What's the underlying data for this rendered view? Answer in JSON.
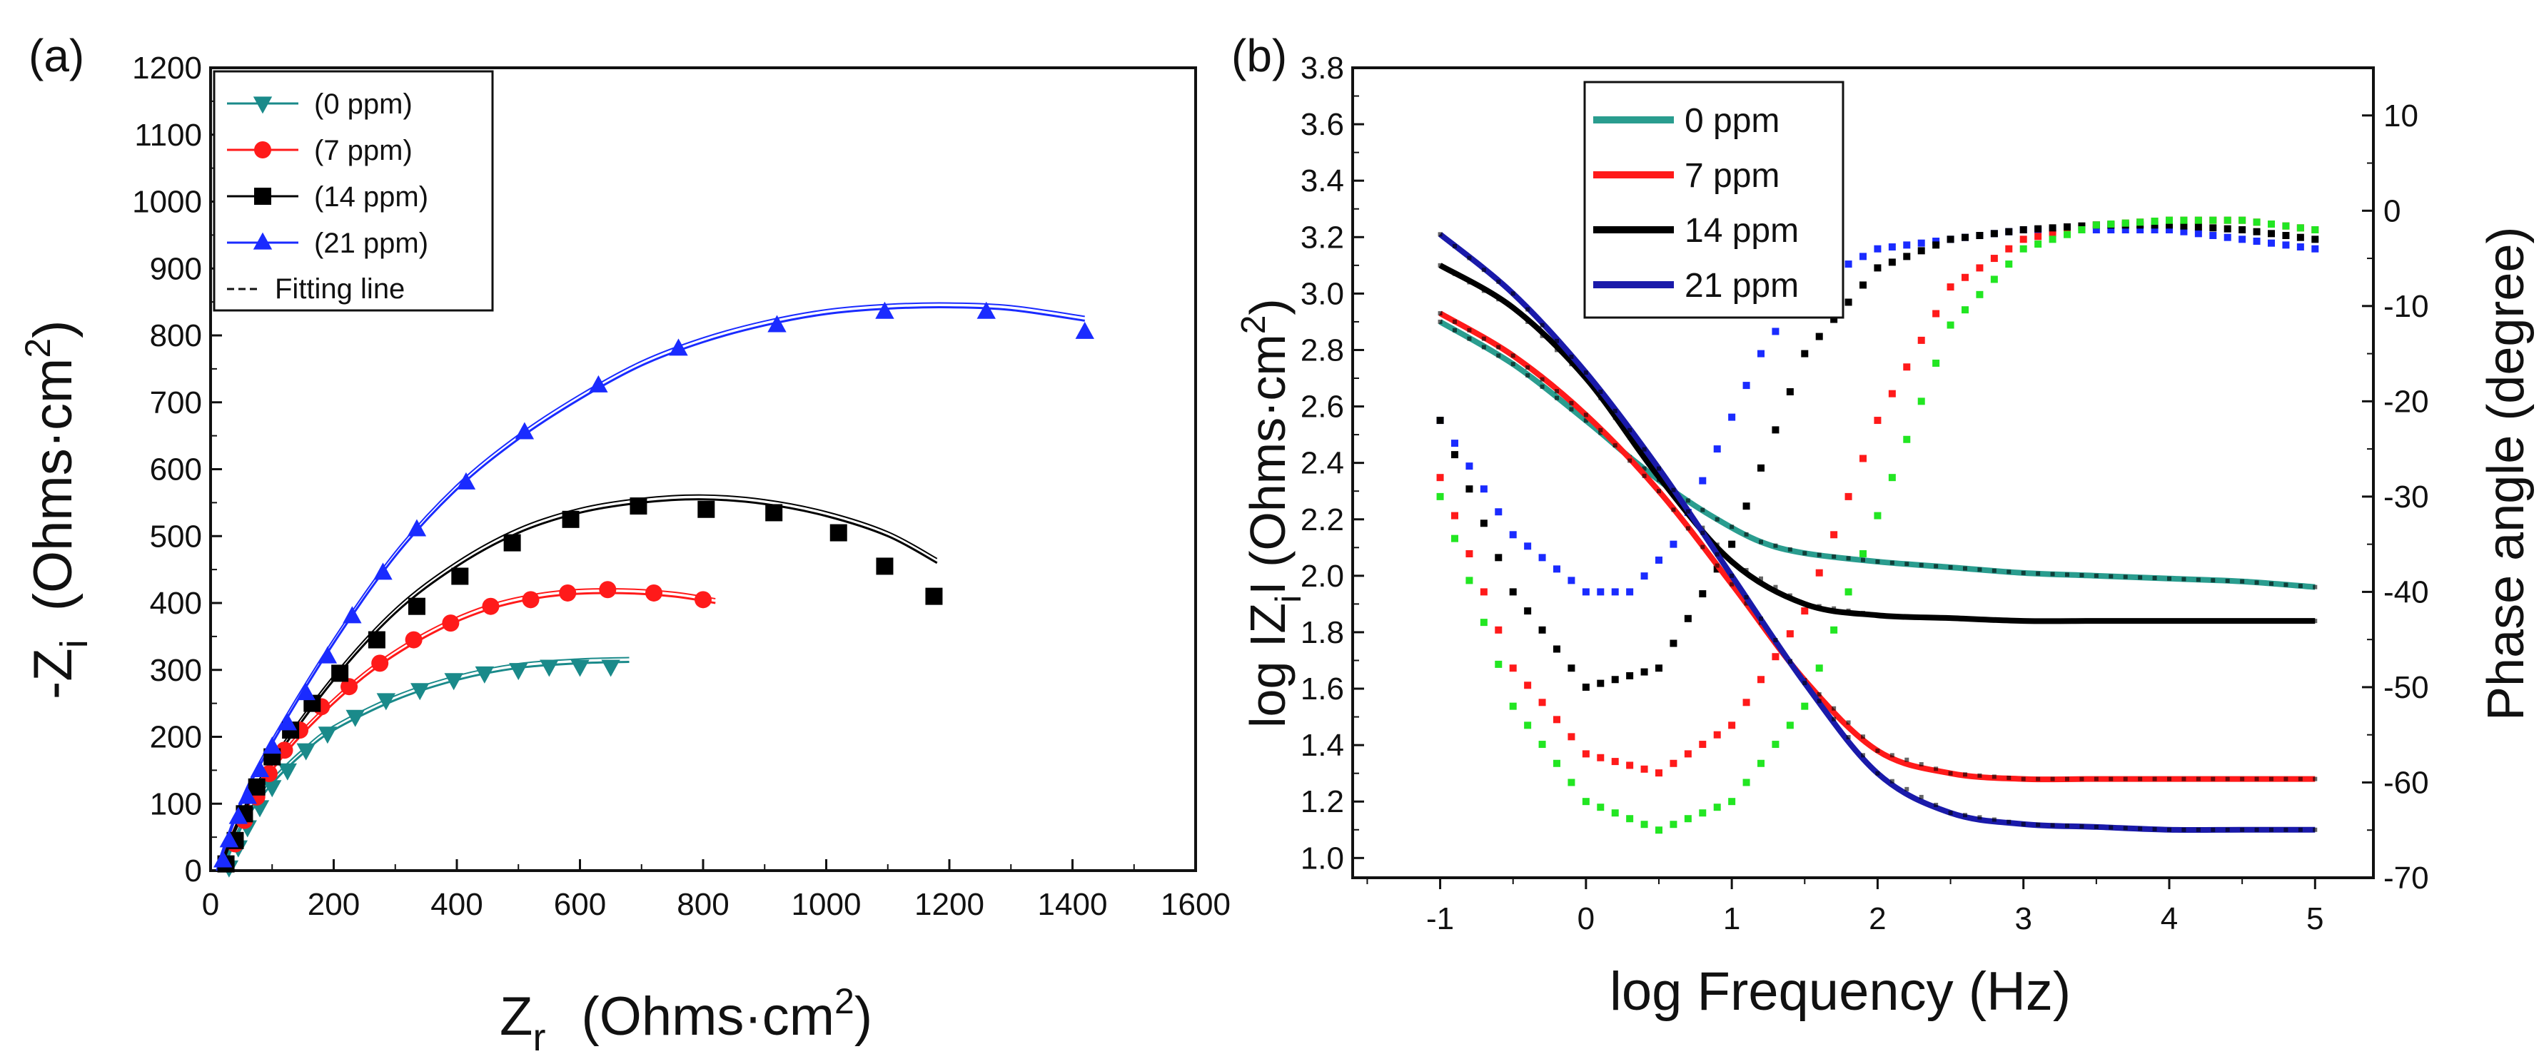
{
  "panels": [
    {
      "id": "a",
      "label": "(a)",
      "chart_data": {
        "type": "scatter",
        "title": "",
        "xlabel_main": "Z",
        "xlabel_sub": "r",
        "xlabel_unit": "(Ohms·cm",
        "xlabel_sup": "2",
        "xlabel_close": ")",
        "ylabel_main": "-Z",
        "ylabel_sub": "i",
        "ylabel_unit": "(Ohms·cm",
        "ylabel_sup": "2",
        "ylabel_close": ")",
        "xlim": [
          0,
          1600
        ],
        "ylim": [
          0,
          1200
        ],
        "xticks": [
          "0",
          "200",
          "400",
          "600",
          "800",
          "1000",
          "1200",
          "1400",
          "1600"
        ],
        "yticks": [
          "0",
          "100",
          "200",
          "300",
          "400",
          "500",
          "600",
          "700",
          "800",
          "900",
          "1000",
          "1100",
          "1200"
        ],
        "legend_position": "top-left",
        "fit_label": "Fitting line",
        "series": [
          {
            "name": "(0 ppm)",
            "color": "#1a8a8a",
            "marker": "triangle-down",
            "x": [
              30,
              45,
              60,
              80,
              100,
              125,
              155,
              190,
              235,
              285,
              340,
              395,
              445,
              500,
              550,
              600,
              650
            ],
            "y": [
              5,
              35,
              65,
              95,
              125,
              150,
              180,
              205,
              230,
              255,
              270,
              285,
              295,
              300,
              305,
              305,
              305
            ],
            "fit_x": [
              20,
              40,
              60,
              100,
              150,
              200,
              300,
              400,
              500,
              600,
              680
            ],
            "fit_y": [
              0,
              45,
              80,
              130,
              175,
              210,
              255,
              285,
              303,
              310,
              312
            ]
          },
          {
            "name": "(7 ppm)",
            "color": "#ff1a1a",
            "marker": "circle",
            "x": [
              25,
              40,
              55,
              75,
              95,
              120,
              145,
              180,
              225,
              275,
              330,
              390,
              455,
              520,
              580,
              645,
              720,
              800
            ],
            "y": [
              10,
              40,
              75,
              110,
              145,
              180,
              210,
              245,
              275,
              310,
              345,
              370,
              395,
              405,
              415,
              420,
              415,
              405
            ],
            "fit_x": [
              15,
              40,
              80,
              150,
              250,
              350,
              450,
              550,
              650,
              750,
              820
            ],
            "fit_y": [
              0,
              60,
              125,
              205,
              290,
              350,
              390,
              410,
              415,
              410,
              400
            ]
          },
          {
            "name": "(14 ppm)",
            "color": "#000000",
            "marker": "square",
            "x": [
              25,
              40,
              55,
              75,
              100,
              130,
              165,
              210,
              270,
              335,
              405,
              490,
              585,
              695,
              805,
              915,
              1020,
              1095,
              1175
            ],
            "y": [
              10,
              45,
              85,
              125,
              170,
              210,
              250,
              295,
              345,
              395,
              440,
              490,
              525,
              545,
              540,
              535,
              505,
              455,
              410
            ],
            "fit_x": [
              15,
              50,
              100,
              200,
              300,
              400,
              500,
              600,
              700,
              800,
              900,
              1000,
              1100,
              1180
            ],
            "fit_y": [
              0,
              80,
              160,
              285,
              385,
              455,
              505,
              535,
              550,
              555,
              548,
              530,
              500,
              460
            ]
          },
          {
            "name": "(21 ppm)",
            "color": "#1a2bff",
            "marker": "triangle-up",
            "x": [
              20,
              30,
              45,
              60,
              80,
              100,
              125,
              155,
              190,
              230,
              280,
              335,
              415,
              510,
              630,
              760,
              920,
              1095,
              1260,
              1420
            ],
            "y": [
              15,
              45,
              80,
              110,
              150,
              185,
              220,
              265,
              320,
              380,
              445,
              510,
              580,
              655,
              725,
              780,
              815,
              835,
              835,
              805
            ],
            "fit_x": [
              10,
              50,
              100,
              200,
              300,
              400,
              500,
              600,
              700,
              800,
              900,
              1000,
              1100,
              1200,
              1300,
              1420
            ],
            "fit_y": [
              0,
              100,
              190,
              340,
              470,
              570,
              645,
              705,
              755,
              790,
              815,
              832,
              840,
              842,
              838,
              822
            ]
          }
        ]
      }
    },
    {
      "id": "b",
      "label": "(b)",
      "chart_data": {
        "type": "line",
        "title": "",
        "xlabel": "log Frequency (Hz)",
        "ylabel_main": "log IZ",
        "ylabel_sub": "i",
        "ylabel_unit": "I (Ohms·cm",
        "ylabel_sup": "2",
        "ylabel_close": ")",
        "y2label": "Phase angle (degree)",
        "xlim": [
          -1.6,
          5.4
        ],
        "ylim": [
          0.93,
          3.8
        ],
        "y2lim": [
          -70,
          15
        ],
        "xticks": [
          "-1",
          "0",
          "1",
          "2",
          "3",
          "4",
          "5"
        ],
        "yticks": [
          "1.0",
          "1.2",
          "1.4",
          "1.6",
          "1.8",
          "2.0",
          "2.2",
          "2.4",
          "2.6",
          "2.8",
          "3.0",
          "3.2",
          "3.4",
          "3.6",
          "3.8"
        ],
        "y2ticks": [
          "-70",
          "-60",
          "-50",
          "-40",
          "-30",
          "-20",
          "-10",
          "0",
          "10"
        ],
        "legend_position": "top-left",
        "series": [
          {
            "name": "0 ppm",
            "color": "#2a9d8f",
            "phase_color": "#1a2bff",
            "x": [
              -1,
              -0.5,
              0,
              0.3,
              0.6,
              0.9,
              1.2,
              1.5,
              2,
              2.5,
              3,
              3.5,
              4,
              4.5,
              5
            ],
            "mag": [
              2.9,
              2.75,
              2.55,
              2.42,
              2.3,
              2.2,
              2.12,
              2.08,
              2.05,
              2.03,
              2.01,
              2.0,
              1.99,
              1.98,
              1.96
            ],
            "phase": [
              -22,
              -34,
              -40,
              -40,
              -35,
              -25,
              -15,
              -8,
              -4,
              -3,
              -2,
              -2,
              -2,
              -3,
              -4
            ]
          },
          {
            "name": "7 ppm",
            "color": "#ff1a1a",
            "phase_color": "#ff1a1a",
            "x": [
              -1,
              -0.5,
              0,
              0.5,
              1,
              1.5,
              2,
              2.5,
              3,
              3.5,
              4,
              4.5,
              5
            ],
            "mag": [
              2.93,
              2.78,
              2.57,
              2.3,
              1.97,
              1.63,
              1.38,
              1.3,
              1.28,
              1.28,
              1.28,
              1.28,
              1.28
            ],
            "phase": [
              -28,
              -48,
              -57,
              -59,
              -54,
              -42,
              -22,
              -8,
              -3,
              -1.5,
              -1,
              -1,
              -2
            ]
          },
          {
            "name": "14 ppm",
            "color": "#000000",
            "phase_color": "#000000",
            "x": [
              -1,
              -0.5,
              0,
              0.5,
              1,
              1.5,
              2,
              2.5,
              3,
              3.5,
              4,
              4.5,
              5
            ],
            "mag": [
              3.1,
              2.95,
              2.7,
              2.35,
              2.05,
              1.9,
              1.86,
              1.85,
              1.84,
              1.84,
              1.84,
              1.84,
              1.84
            ],
            "phase": [
              -22,
              -40,
              -50,
              -48,
              -35,
              -15,
              -6,
              -3,
              -2,
              -1.5,
              -1.5,
              -2,
              -3
            ]
          },
          {
            "name": "21 ppm",
            "color": "#1a1aaa",
            "phase_color": "#22e622",
            "x": [
              -1,
              -0.5,
              0,
              0.5,
              1,
              1.5,
              2,
              2.5,
              3,
              3.5,
              4,
              4.5,
              5
            ],
            "mag": [
              3.21,
              3.0,
              2.72,
              2.38,
              2.0,
              1.62,
              1.3,
              1.16,
              1.12,
              1.11,
              1.1,
              1.1,
              1.1
            ],
            "phase": [
              -30,
              -52,
              -62,
              -65,
              -62,
              -52,
              -32,
              -12,
              -4,
              -1.5,
              -1,
              -1,
              -2
            ]
          }
        ]
      }
    }
  ]
}
